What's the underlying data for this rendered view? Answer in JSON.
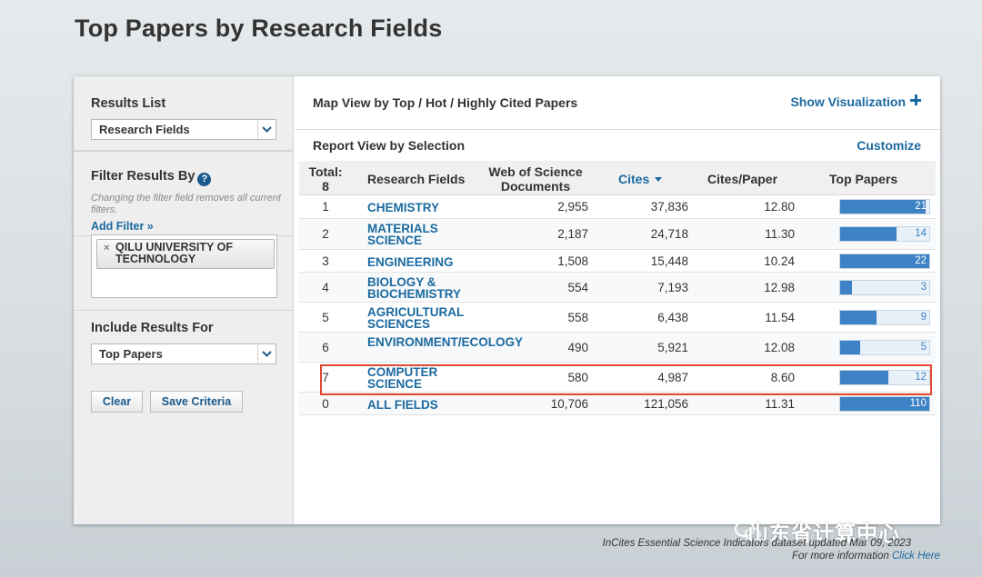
{
  "page": {
    "title": "Top Papers by Research Fields"
  },
  "sidebar": {
    "results_list": {
      "heading": "Results List",
      "selected": "Research Fields"
    },
    "filter": {
      "heading": "Filter Results By",
      "note": "Changing the filter field removes all current filters.",
      "add_filter": "Add Filter »",
      "chip_label": "QILU UNIVERSITY OF TECHNOLOGY",
      "chip_remove": "×"
    },
    "include": {
      "heading": "Include Results For",
      "selected": "Top Papers"
    },
    "buttons": {
      "clear": "Clear",
      "save_criteria": "Save Criteria"
    }
  },
  "main": {
    "map_view_label": "Map View by Top / Hot / Highly Cited Papers",
    "show_visualization": "Show Visualization",
    "report_view_label": "Report View by Selection",
    "customize": "Customize"
  },
  "table": {
    "total_label": "Total:",
    "total_value": "8",
    "headers": {
      "field": "Research Fields",
      "docs": "Web of Science Documents",
      "cites": "Cites",
      "cites_per_paper": "Cites/Paper",
      "top_papers": "Top Papers"
    },
    "bar_max": 22,
    "rows": [
      {
        "rank": "1",
        "field": "CHEMISTRY",
        "docs": "2,955",
        "cites": "37,836",
        "cpp": "12.80",
        "top": "21",
        "top_value": 21
      },
      {
        "rank": "2",
        "field": "MATERIALS SCIENCE",
        "docs": "2,187",
        "cites": "24,718",
        "cpp": "11.30",
        "top": "14",
        "top_value": 14
      },
      {
        "rank": "3",
        "field": "ENGINEERING",
        "docs": "1,508",
        "cites": "15,448",
        "cpp": "10.24",
        "top": "22",
        "top_value": 22
      },
      {
        "rank": "4",
        "field": "BIOLOGY & BIOCHEMISTRY",
        "docs": "554",
        "cites": "7,193",
        "cpp": "12.98",
        "top": "3",
        "top_value": 3
      },
      {
        "rank": "5",
        "field": "AGRICULTURAL SCIENCES",
        "docs": "558",
        "cites": "6,438",
        "cpp": "11.54",
        "top": "9",
        "top_value": 9
      },
      {
        "rank": "6",
        "field": "ENVIRONMENT/ECOLOGY",
        "docs": "490",
        "cites": "5,921",
        "cpp": "12.08",
        "top": "5",
        "top_value": 5
      },
      {
        "rank": "7",
        "field": "COMPUTER SCIENCE",
        "docs": "580",
        "cites": "4,987",
        "cpp": "8.60",
        "top": "12",
        "top_value": 12
      },
      {
        "rank": "0",
        "field": "ALL FIELDS",
        "docs": "10,706",
        "cites": "121,056",
        "cpp": "11.31",
        "top": "110",
        "top_value": 110
      }
    ]
  },
  "footer": {
    "line1": "InCites Essential Science Indicators dataset updated Mar 09, 2023",
    "line2_prefix": "For more information ",
    "line2_link": "Click Here"
  },
  "watermark": {
    "text": "山东省计算中心"
  },
  "colors": {
    "accent": "#1b6aa0",
    "bar": "#3d82c4",
    "highlight": "#e2462f"
  }
}
